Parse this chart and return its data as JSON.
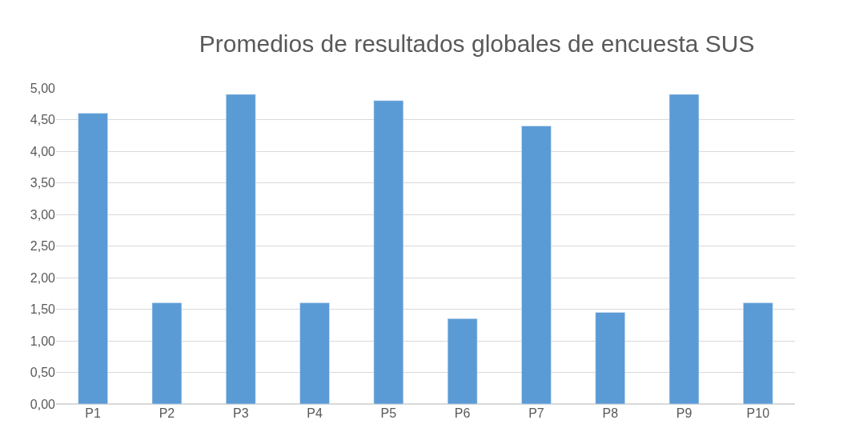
{
  "chart_data": {
    "type": "bar",
    "title": "Promedios de resultados globales de encuesta SUS",
    "categories": [
      "P1",
      "P2",
      "P3",
      "P4",
      "P5",
      "P6",
      "P7",
      "P8",
      "P9",
      "P10"
    ],
    "values": [
      4.6,
      1.6,
      4.9,
      1.6,
      4.8,
      1.35,
      4.4,
      1.45,
      4.9,
      1.6
    ],
    "color": "#5b9bd5",
    "ylim": [
      0,
      5.0
    ],
    "yticks": [
      {
        "value": 0,
        "label": "0,00"
      },
      {
        "value": 0.5,
        "label": "0,50"
      },
      {
        "value": 1,
        "label": "1,00"
      },
      {
        "value": 1.5,
        "label": "1,50"
      },
      {
        "value": 2,
        "label": "2,00"
      },
      {
        "value": 2.5,
        "label": "2,50"
      },
      {
        "value": 3,
        "label": "3,00"
      },
      {
        "value": 3.5,
        "label": "3,50"
      },
      {
        "value": 4,
        "label": "4,00"
      },
      {
        "value": 4.5,
        "label": "4,50"
      },
      {
        "value": 5,
        "label": "5,00"
      }
    ],
    "grid": "y"
  }
}
